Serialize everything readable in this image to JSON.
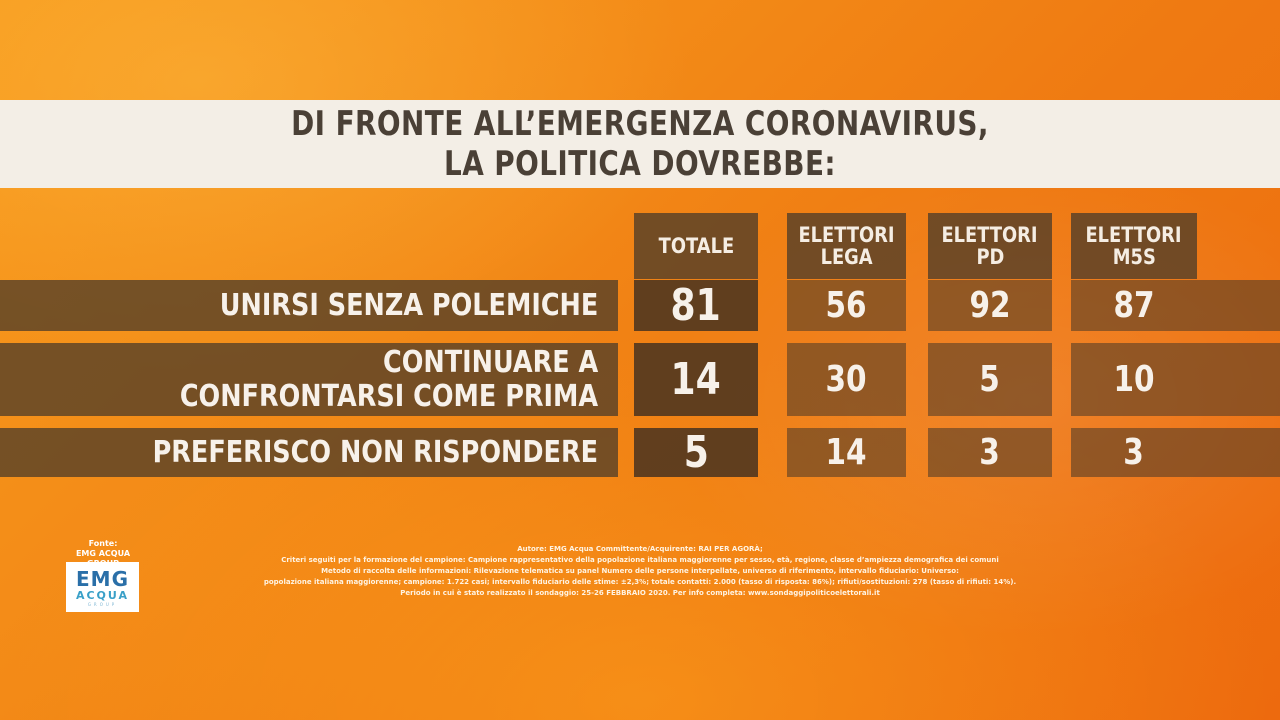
{
  "chart_data": {
    "type": "table",
    "title": [
      "DI FRONTE ALL’EMERGENZA CORONAVIRUS,",
      "LA POLITICA DOVREBBE:"
    ],
    "columns": [
      [
        "TOTALE"
      ],
      [
        "ELETTORI",
        "LEGA"
      ],
      [
        "ELETTORI",
        "PD"
      ],
      [
        "ELETTORI",
        "M5S"
      ]
    ],
    "rows": [
      {
        "label": [
          "UNIRSI SENZA POLEMICHE"
        ],
        "values": [
          "81",
          "56",
          "92",
          "87"
        ]
      },
      {
        "label": [
          "CONTINUARE A",
          "CONFRONTARSI COME PRIMA"
        ],
        "values": [
          "14",
          "30",
          "5",
          "10"
        ]
      },
      {
        "label": [
          "PREFERISCO NON RISPONDERE"
        ],
        "values": [
          "5",
          "14",
          "3",
          "3"
        ]
      }
    ]
  },
  "source": {
    "label": [
      "Fonte:",
      "EMG ACQUA GROUP"
    ],
    "logo_text": "EMG",
    "logo_sub": "ACQUA",
    "logo_sub2": "GROUP",
    "colors": {
      "logo_blue": "#2a6fa8",
      "logo_light_blue": "#3aa0c8"
    }
  },
  "notes": [
    "Autore: EMG Acqua Committente/Acquirente: RAI PER AGORÀ;",
    "Criteri seguiti per la formazione del campione: Campione rappresentativo della popolazione italiana maggiorenne per sesso, età, regione, classe d’ampiezza demografica dei comuni",
    "Metodo di raccolta delle informazioni: Rilevazione telematica su panel Numero delle persone interpellate, universo di riferimento, intervallo fiduciario: Universo:",
    "popolazione italiana maggiorenne; campione: 1.722 casi; intervallo fiduciario delle stime: ±2,3%; totale contatti: 2.000 (tasso di risposta: 86%); rifiuti/sostituzioni: 278 (tasso di rifiuti: 14%).",
    "Periodo in cui è stato realizzato il sondaggio: 25-26 FEBBRAIO 2020. Per info completa: www.sondaggipoliticoelettorali.it"
  ],
  "colors": {
    "background": "#f38a17",
    "title_band": "#f3eee6",
    "title_text": "#4a4036",
    "band": "#554028"
  }
}
